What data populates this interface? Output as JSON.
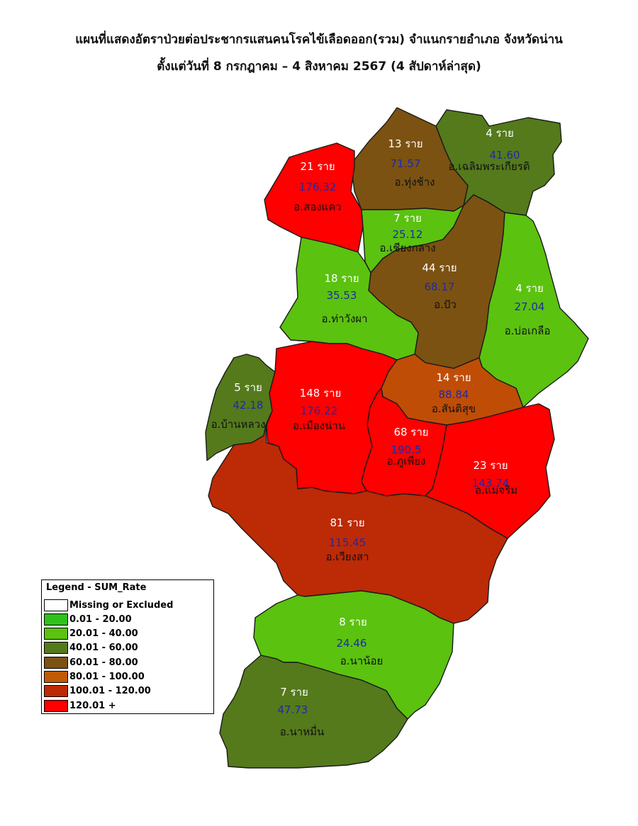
{
  "title_line1": "แผนที่แสดงอัตราป่วยต่อประชากรแสนคนโรคไข้เลือดออก(รวม) จำแนกรายอำเภอ จังหวัดน่าน",
  "title_line2": "ตั้งแต่วันที่  8 กรกฎาคม – 4 สิงหาคม 2567 (4 สัปดาห์ล่าสุด)",
  "districts": [
    {
      "id": "chaloem",
      "name": "อ.เฉลิมพระเกียรติ",
      "cases": "4 ราย",
      "rate": "41.60",
      "color": "#547a1b"
    },
    {
      "id": "thungchang",
      "name": "อ.ทุ่งช้าง",
      "cases": "13 ราย",
      "rate": "71.57",
      "color": "#7b5212"
    },
    {
      "id": "songkhwae",
      "name": "อ.สองแคว",
      "cases": "21 ราย",
      "rate": "176.32",
      "color": "#ff0000"
    },
    {
      "id": "chiangklang",
      "name": "อ.เชียงกลาง",
      "cases": "7 ราย",
      "rate": "25.12",
      "color": "#5bc20f"
    },
    {
      "id": "pua",
      "name": "อ.ปัว",
      "cases": "44 ราย",
      "rate": "68.17",
      "color": "#7b5212"
    },
    {
      "id": "thawangpha",
      "name": "อ.ท่าวังผา",
      "cases": "18 ราย",
      "rate": "35.53",
      "color": "#5bc20f"
    },
    {
      "id": "boklua",
      "name": "อ.บ่อเกลือ",
      "cases": "4 ราย",
      "rate": "27.04",
      "color": "#5bc20f"
    },
    {
      "id": "banluang",
      "name": "อ.บ้านหลวง",
      "cases": "5 ราย",
      "rate": "42.18",
      "color": "#547a1b"
    },
    {
      "id": "muangnan",
      "name": "อ.เมืองน่าน",
      "cases": "148 ราย",
      "rate": "176.22",
      "color": "#ff0000"
    },
    {
      "id": "santisuk",
      "name": "อ.สันติสุข",
      "cases": "14 ราย",
      "rate": "88.84",
      "color": "#c04d06"
    },
    {
      "id": "phupiang",
      "name": "อ.ภูเพียง",
      "cases": "68 ราย",
      "rate": "190.5",
      "color": "#ff0000"
    },
    {
      "id": "maecharim",
      "name": "อ.แม่จริม",
      "cases": "23 ราย",
      "rate": "143.74",
      "color": "#ff0000"
    },
    {
      "id": "wiangsa",
      "name": "อ.เวียงสา",
      "cases": "81 ราย",
      "rate": "115.45",
      "color": "#bd2a06"
    },
    {
      "id": "nanoi",
      "name": "อ.นาน้อย",
      "cases": "8 ราย",
      "rate": "24.46",
      "color": "#5bc20f"
    },
    {
      "id": "namuen",
      "name": "อ.นาหมื่น",
      "cases": "7 ราย",
      "rate": "47.73",
      "color": "#547a1b"
    }
  ],
  "legend": {
    "title": "Legend - SUM_Rate",
    "items": [
      {
        "label": "Missing or Excluded",
        "color": "#ffffff"
      },
      {
        "label": "0.01 - 20.00",
        "color": "#2fc21b"
      },
      {
        "label": "20.01 - 40.00",
        "color": "#5bc20f"
      },
      {
        "label": "40.01 - 60.00",
        "color": "#547a1b"
      },
      {
        "label": "60.01 - 80.00",
        "color": "#7b5212"
      },
      {
        "label": "80.01 - 100.00",
        "color": "#c05a06"
      },
      {
        "label": "100.01 - 120.00",
        "color": "#bd2a06"
      },
      {
        "label": "120.01 +",
        "color": "#ff0000"
      }
    ]
  }
}
